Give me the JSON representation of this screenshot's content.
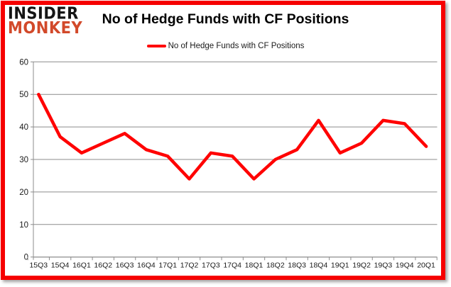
{
  "logo": {
    "line1": "INSIDER",
    "line2": "MONKEY"
  },
  "header": {
    "title": "No of Hedge Funds with CF Positions"
  },
  "legend": {
    "label": "No of Hedge Funds with CF Positions"
  },
  "colors": {
    "line": "#ff0000",
    "frame_border": "#f60000",
    "logo_accent": "#d2492a",
    "logo_primary": "#151515",
    "grid": "#8c8c8c",
    "text": "#1a1a1a"
  },
  "chart_data": {
    "type": "line",
    "title": "No of Hedge Funds with CF Positions",
    "categories": [
      "15Q3",
      "15Q4",
      "16Q1",
      "16Q2",
      "16Q3",
      "16Q4",
      "17Q1",
      "17Q2",
      "17Q3",
      "17Q4",
      "18Q1",
      "18Q2",
      "18Q3",
      "18Q4",
      "19Q1",
      "19Q2",
      "19Q3",
      "19Q4",
      "20Q1"
    ],
    "series": [
      {
        "name": "No of Hedge Funds with CF Positions",
        "values": [
          50,
          37,
          32,
          35,
          38,
          33,
          31,
          24,
          32,
          31,
          24,
          30,
          33,
          42,
          32,
          35,
          42,
          41,
          34
        ]
      }
    ],
    "xlabel": "",
    "ylabel": "",
    "ylim": [
      0,
      60
    ],
    "yticks": [
      0,
      10,
      20,
      30,
      40,
      50,
      60
    ],
    "grid": true,
    "legend_position": "top-center"
  }
}
